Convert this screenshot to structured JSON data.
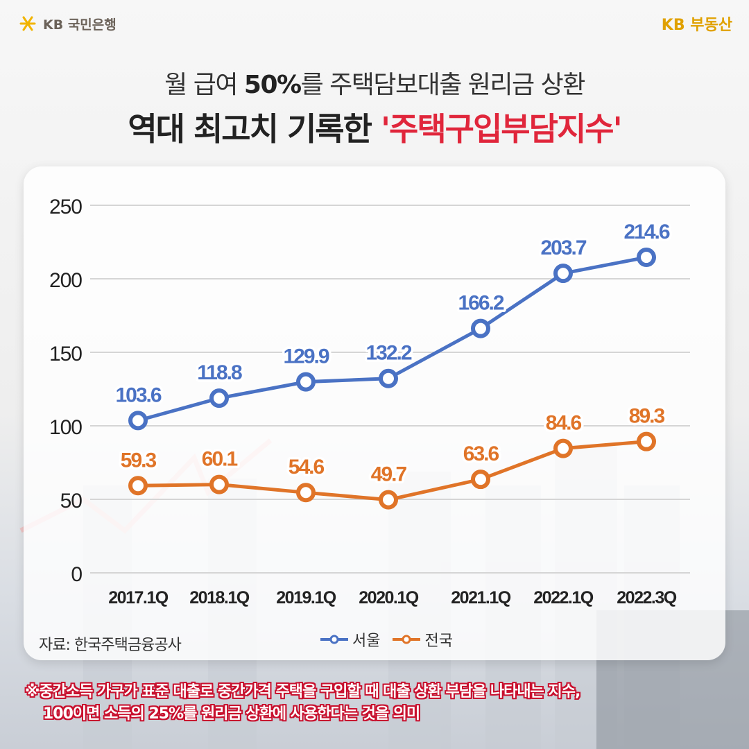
{
  "brand": {
    "left_logo_text": "KB 국민은행",
    "right_logo_text": "KB 부동산"
  },
  "title": {
    "line1_a": "월 급여 ",
    "line1_bold": "50%",
    "line1_b": "를 주택담보대출 원리금 상환",
    "line2_a": "역대 최고치 기록한 ",
    "line2_red": "'주택구입부담지수'"
  },
  "chart_data": {
    "type": "line",
    "categories": [
      "2017.1Q",
      "2018.1Q",
      "2019.1Q",
      "2020.1Q",
      "2021.1Q",
      "2022.1Q",
      "2022.3Q"
    ],
    "series": [
      {
        "name": "서울",
        "values": [
          103.6,
          118.8,
          129.9,
          132.2,
          166.2,
          203.7,
          214.6
        ],
        "color": "#4a72c4"
      },
      {
        "name": "전국",
        "values": [
          59.3,
          60.1,
          54.6,
          49.7,
          63.6,
          84.6,
          89.3
        ],
        "color": "#e07428"
      }
    ],
    "ylim": [
      0,
      250
    ],
    "yticks": [
      "0",
      "50",
      "100",
      "150",
      "200",
      "250"
    ],
    "grid": true,
    "legend": "bottom-center"
  },
  "source_text": "자료: 한국주택금융공사",
  "footnote": {
    "line1": "※중간소득 가구가 표준 대출로 중간가격 주택을 구입할 때 대출 상환 부담을 나타내는 지수,",
    "line2": "100이면 소득의 25%를 원리금 상환에 사용한다는 것을 의미"
  },
  "colors": {
    "seoul": "#4a72c4",
    "national": "#e07428",
    "accent_red": "#e0263b",
    "kb_yellow": "#e0a100"
  }
}
